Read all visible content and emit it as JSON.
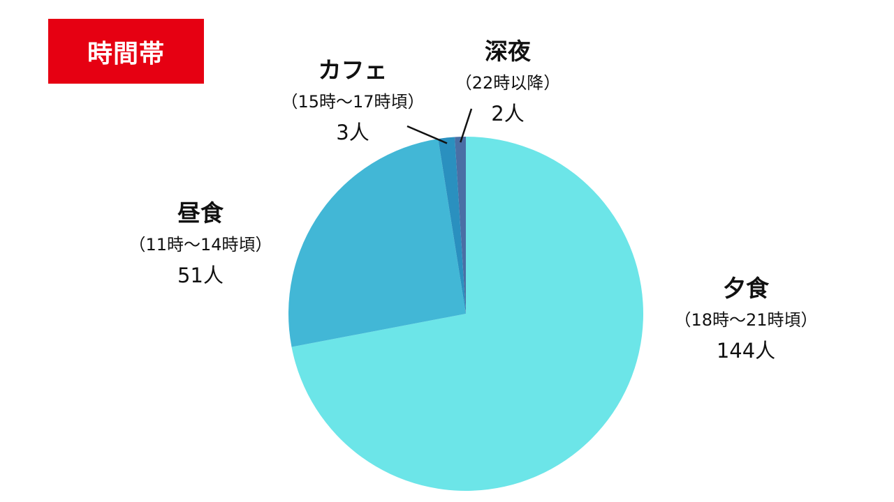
{
  "badge": {
    "text": "時間帯",
    "bg": "#e60012",
    "fg": "#ffffff"
  },
  "chart_data": {
    "type": "pie",
    "title": "時間帯",
    "unit": "人",
    "slices": [
      {
        "name": "夕食",
        "time": "（18時〜21時頃）",
        "count_label": "144人",
        "value": 144,
        "color": "#6ce5e8"
      },
      {
        "name": "昼食",
        "time": "（11時〜14時頃）",
        "count_label": "51人",
        "value": 51,
        "color": "#42b7d6"
      },
      {
        "name": "カフェ",
        "time": "（15時〜17時頃）",
        "count_label": "3人",
        "value": 3,
        "color": "#2a90bf"
      },
      {
        "name": "深夜",
        "time": "（22時以降）",
        "count_label": "2人",
        "value": 2,
        "color": "#4a6fa5"
      }
    ]
  }
}
